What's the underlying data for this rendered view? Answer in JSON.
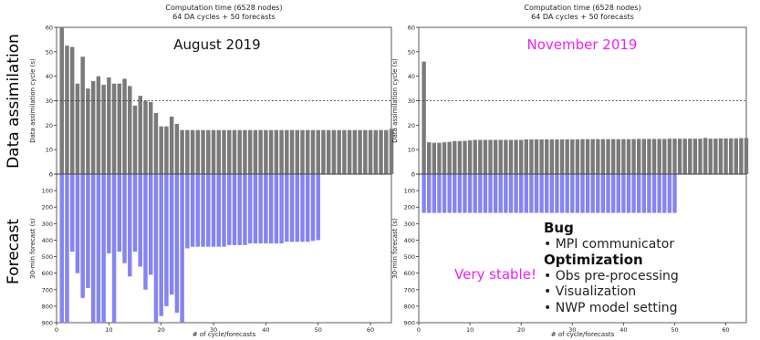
{
  "side_labels": {
    "top": "Data assimilation",
    "bottom": "Forecast"
  },
  "notes": {
    "bug_heading": "Bug",
    "bug_items": [
      "MPI communicator"
    ],
    "opt_heading": "Optimization",
    "opt_items": [
      "Obs pre-processing",
      "Visualization",
      "NWP model setting"
    ],
    "stable": "Very stable!"
  },
  "colors": {
    "da_bar": "#7a7a7a",
    "fc_bar": "#8484f2",
    "august_annotation": "#111111",
    "november_annotation": "#ee22ee",
    "stable_text": "#ee22ee"
  },
  "chart_data": [
    {
      "type": "bar",
      "title_lines": [
        "Computation time (6528 nodes)",
        "64 DA cycles + 50 forecasts"
      ],
      "annotation": "August 2019",
      "xlabel": "# of cycle/forecasts",
      "xlim": [
        0,
        64
      ],
      "xticks": [
        "0",
        "10",
        "20",
        "30",
        "40",
        "50",
        "60"
      ],
      "da": {
        "ylabel": "Data assimilation cycle (s)",
        "ylim": [
          0,
          60
        ],
        "yticks": [
          "0",
          "10",
          "20",
          "30",
          "40",
          "50",
          "60"
        ],
        "threshold": 30,
        "x": [
          1,
          2,
          3,
          4,
          5,
          6,
          7,
          8,
          9,
          10,
          11,
          12,
          13,
          14,
          15,
          16,
          17,
          18,
          19,
          20,
          21,
          22,
          23,
          24,
          25,
          26,
          27,
          28,
          29,
          30,
          31,
          32,
          33,
          34,
          35,
          36,
          37,
          38,
          39,
          40,
          41,
          42,
          43,
          44,
          45,
          46,
          47,
          48,
          49,
          50,
          51,
          52,
          53,
          54,
          55,
          56,
          57,
          58,
          59,
          60,
          61,
          62,
          63,
          64
        ],
        "values": [
          60,
          52.5,
          52,
          37,
          48,
          35,
          38,
          40,
          36.5,
          39.5,
          37,
          37,
          39,
          36,
          28,
          32,
          30,
          29.5,
          25,
          19.5,
          19.5,
          23.5,
          20.5,
          18,
          18,
          18,
          18,
          18,
          18,
          18,
          18,
          18,
          18,
          18,
          18,
          18,
          18,
          18,
          18,
          18,
          18,
          18,
          18,
          18,
          18,
          18,
          18,
          18,
          18,
          18,
          18,
          18,
          18,
          18,
          18,
          18,
          18,
          18,
          18,
          18,
          18,
          18,
          18,
          18.5
        ]
      },
      "forecast": {
        "ylabel": "30-min forecast (s)",
        "ylim": [
          0,
          900
        ],
        "yticks": [
          "0",
          "100",
          "200",
          "300",
          "400",
          "500",
          "600",
          "700",
          "800",
          "900"
        ],
        "x": [
          1,
          2,
          3,
          4,
          5,
          6,
          7,
          8,
          9,
          10,
          11,
          12,
          13,
          14,
          15,
          16,
          17,
          18,
          19,
          20,
          21,
          22,
          23,
          24,
          25,
          26,
          27,
          28,
          29,
          30,
          31,
          32,
          33,
          34,
          35,
          36,
          37,
          38,
          39,
          40,
          41,
          42,
          43,
          44,
          45,
          46,
          47,
          48,
          49,
          50
        ],
        "values": [
          900,
          900,
          470,
          600,
          750,
          690,
          900,
          900,
          900,
          480,
          900,
          470,
          540,
          620,
          470,
          560,
          700,
          610,
          900,
          860,
          800,
          730,
          840,
          900,
          450,
          440,
          440,
          440,
          440,
          440,
          440,
          440,
          430,
          430,
          430,
          430,
          420,
          420,
          420,
          420,
          420,
          420,
          420,
          410,
          410,
          410,
          410,
          410,
          405,
          400
        ]
      }
    },
    {
      "type": "bar",
      "title_lines": [
        "Computation time (6528 nodes)",
        "64 DA cycles + 50 forecasts"
      ],
      "annotation": "November 2019",
      "xlabel": "# of cycle/forecasts",
      "xlim": [
        0,
        64
      ],
      "xticks": [
        "0",
        "10",
        "20",
        "30",
        "40",
        "50",
        "60"
      ],
      "da": {
        "ylabel": "Data assimilation cycle (s)",
        "ylim": [
          0,
          60
        ],
        "yticks": [
          "0",
          "10",
          "20",
          "30",
          "40",
          "50",
          "60"
        ],
        "threshold": 30,
        "x": [
          1,
          2,
          3,
          4,
          5,
          6,
          7,
          8,
          9,
          10,
          11,
          12,
          13,
          14,
          15,
          16,
          17,
          18,
          19,
          20,
          21,
          22,
          23,
          24,
          25,
          26,
          27,
          28,
          29,
          30,
          31,
          32,
          33,
          34,
          35,
          36,
          37,
          38,
          39,
          40,
          41,
          42,
          43,
          44,
          45,
          46,
          47,
          48,
          49,
          50,
          51,
          52,
          53,
          54,
          55,
          56,
          57,
          58,
          59,
          60,
          61,
          62,
          63,
          64
        ],
        "values": [
          46,
          13,
          12.8,
          12.8,
          13,
          13.2,
          13.5,
          13.5,
          13.6,
          13.8,
          14,
          14,
          14,
          14,
          14,
          14,
          14,
          14,
          14,
          14,
          14.2,
          14.2,
          14.2,
          14.2,
          14.2,
          14.2,
          14.2,
          14.2,
          14.2,
          14.2,
          14.2,
          14.3,
          14.3,
          14.3,
          14.3,
          14.3,
          14.3,
          14.3,
          14.3,
          14.3,
          14.3,
          14.3,
          14.4,
          14.4,
          14.4,
          14.4,
          14.4,
          14.4,
          14.5,
          14.5,
          14.5,
          14.5,
          14.5,
          14.5,
          14.5,
          14.8,
          14.5,
          14.5,
          14.6,
          14.6,
          14.6,
          14.6,
          14.7,
          14.8
        ]
      },
      "forecast": {
        "ylabel": "30-min forecast (s)",
        "ylim": [
          0,
          900
        ],
        "yticks": [
          "0",
          "100",
          "200",
          "300",
          "400",
          "500",
          "600",
          "700",
          "800",
          "900"
        ],
        "x": [
          1,
          2,
          3,
          4,
          5,
          6,
          7,
          8,
          9,
          10,
          11,
          12,
          13,
          14,
          15,
          16,
          17,
          18,
          19,
          20,
          21,
          22,
          23,
          24,
          25,
          26,
          27,
          28,
          29,
          30,
          31,
          32,
          33,
          34,
          35,
          36,
          37,
          38,
          39,
          40,
          41,
          42,
          43,
          44,
          45,
          46,
          47,
          48,
          49,
          50
        ],
        "values": [
          235,
          235,
          235,
          235,
          235,
          235,
          235,
          235,
          235,
          235,
          235,
          235,
          235,
          235,
          235,
          235,
          235,
          235,
          235,
          235,
          235,
          235,
          235,
          235,
          235,
          235,
          235,
          235,
          235,
          235,
          235,
          235,
          235,
          235,
          235,
          235,
          235,
          235,
          235,
          235,
          235,
          235,
          235,
          235,
          235,
          235,
          235,
          235,
          235,
          235
        ]
      }
    }
  ]
}
